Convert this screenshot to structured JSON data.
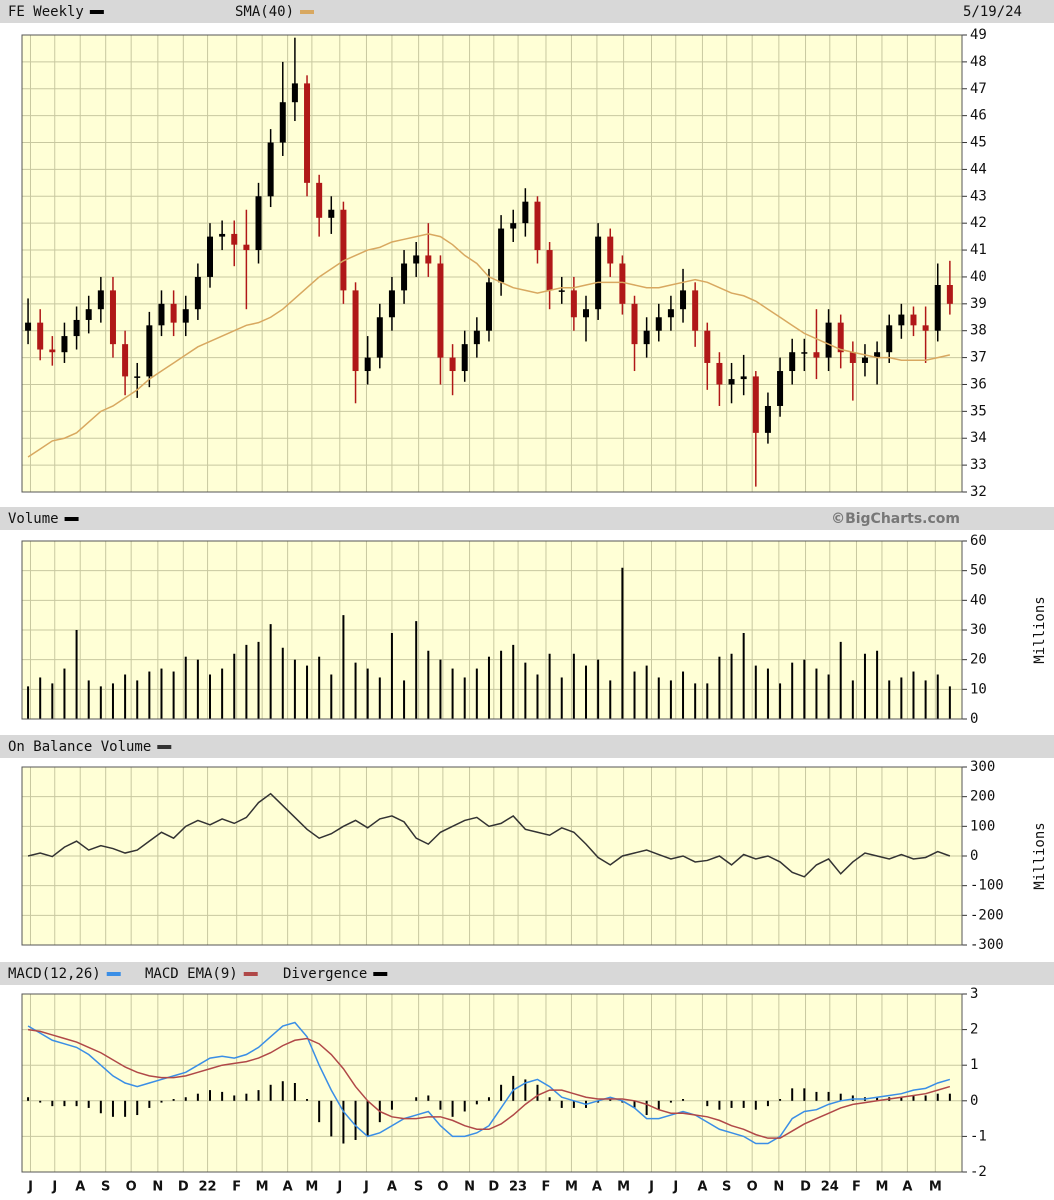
{
  "chart_data": [
    {
      "type": "candlestick",
      "date": "5/19/24",
      "up_color": "#000000",
      "down_color": "#b01818",
      "grid": true,
      "series": [
        {
          "name": "FE Weekly",
          "color": "#000000",
          "open": [
            38.0,
            38.3,
            37.3,
            37.2,
            37.8,
            38.4,
            38.8,
            39.5,
            37.5,
            36.3,
            36.3,
            38.2,
            39.0,
            38.3,
            38.8,
            40.0,
            41.5,
            41.6,
            41.2,
            41.0,
            43.0,
            45.0,
            46.5,
            47.2,
            43.5,
            42.2,
            42.5,
            39.5,
            36.5,
            37.0,
            38.5,
            39.5,
            40.5,
            40.8,
            40.5,
            37.0,
            36.5,
            37.5,
            38.0,
            39.8,
            41.8,
            42.0,
            42.8,
            41.0,
            39.5,
            39.5,
            38.5,
            38.8,
            41.5,
            40.5,
            39.0,
            37.5,
            38.0,
            38.5,
            38.8,
            39.5,
            38.0,
            36.8,
            36.0,
            36.2,
            36.3,
            34.2,
            35.2,
            36.5,
            37.2,
            37.2,
            37.0,
            38.3,
            37.2,
            36.8,
            37.0,
            37.2,
            38.2,
            38.6,
            38.2,
            38.0,
            39.7
          ],
          "high": [
            39.2,
            38.8,
            37.8,
            38.3,
            38.9,
            39.3,
            40.0,
            40.0,
            38.0,
            36.8,
            38.7,
            39.5,
            39.5,
            39.3,
            40.5,
            42.0,
            42.1,
            42.1,
            42.5,
            43.5,
            45.5,
            48.0,
            48.9,
            47.5,
            43.8,
            43.0,
            42.8,
            39.8,
            37.8,
            39.0,
            40.0,
            41.0,
            41.3,
            42.0,
            40.8,
            37.5,
            38.0,
            38.5,
            40.3,
            42.3,
            42.5,
            43.3,
            43.0,
            41.3,
            40.0,
            40.0,
            39.3,
            42.0,
            41.8,
            40.8,
            39.3,
            38.5,
            39.0,
            39.3,
            40.3,
            39.8,
            38.3,
            37.2,
            36.8,
            37.1,
            36.5,
            35.7,
            37.0,
            37.7,
            37.7,
            38.8,
            38.8,
            38.6,
            37.6,
            37.5,
            37.6,
            38.6,
            39.0,
            38.9,
            38.9,
            40.5,
            40.6
          ],
          "low": [
            37.5,
            36.9,
            36.7,
            36.8,
            37.3,
            37.9,
            38.3,
            37.0,
            35.6,
            35.5,
            35.9,
            37.8,
            37.8,
            37.8,
            38.4,
            39.6,
            41.0,
            40.4,
            38.8,
            40.5,
            42.6,
            44.5,
            45.8,
            43.0,
            41.5,
            41.6,
            39.0,
            35.3,
            36.0,
            36.6,
            38.0,
            39.0,
            40.0,
            40.0,
            36.0,
            35.6,
            36.1,
            37.0,
            37.6,
            39.3,
            41.3,
            41.5,
            40.5,
            38.8,
            39.0,
            38.0,
            37.6,
            38.4,
            40.0,
            38.6,
            36.5,
            37.0,
            37.6,
            38.0,
            38.3,
            37.4,
            35.8,
            35.2,
            35.3,
            35.6,
            32.2,
            33.8,
            34.8,
            36.0,
            36.5,
            36.2,
            36.5,
            36.6,
            35.4,
            36.3,
            36.0,
            36.8,
            37.7,
            37.8,
            36.8,
            37.6,
            38.6
          ],
          "close": [
            38.3,
            37.3,
            37.2,
            37.8,
            38.4,
            38.8,
            39.5,
            37.5,
            36.3,
            36.3,
            38.2,
            39.0,
            38.3,
            38.8,
            40.0,
            41.5,
            41.6,
            41.2,
            41.0,
            43.0,
            45.0,
            46.5,
            47.2,
            43.5,
            42.2,
            42.5,
            39.5,
            36.5,
            37.0,
            38.5,
            39.5,
            40.5,
            40.8,
            40.5,
            37.0,
            36.5,
            37.5,
            38.0,
            39.8,
            41.8,
            42.0,
            42.8,
            41.0,
            39.5,
            39.5,
            38.5,
            38.8,
            41.5,
            40.5,
            39.0,
            37.5,
            38.0,
            38.5,
            38.8,
            39.5,
            38.0,
            36.8,
            36.0,
            36.2,
            36.3,
            34.2,
            35.2,
            36.5,
            37.2,
            37.2,
            37.0,
            38.3,
            37.2,
            36.8,
            37.0,
            37.2,
            38.2,
            38.6,
            38.2,
            38.0,
            39.7,
            39.0
          ]
        }
      ],
      "overlay": {
        "name": "SMA(40)",
        "color": "#d8a860",
        "values": [
          33.3,
          33.6,
          33.9,
          34.0,
          34.2,
          34.6,
          35.0,
          35.2,
          35.5,
          35.8,
          36.2,
          36.5,
          36.8,
          37.1,
          37.4,
          37.6,
          37.8,
          38.0,
          38.2,
          38.3,
          38.5,
          38.8,
          39.2,
          39.6,
          40.0,
          40.3,
          40.6,
          40.8,
          41.0,
          41.1,
          41.3,
          41.4,
          41.5,
          41.6,
          41.5,
          41.2,
          40.8,
          40.5,
          40.0,
          39.8,
          39.6,
          39.5,
          39.4,
          39.5,
          39.6,
          39.6,
          39.7,
          39.8,
          39.8,
          39.8,
          39.7,
          39.6,
          39.6,
          39.7,
          39.8,
          39.9,
          39.8,
          39.6,
          39.4,
          39.3,
          39.1,
          38.8,
          38.5,
          38.2,
          37.9,
          37.7,
          37.5,
          37.3,
          37.2,
          37.1,
          37.0,
          37.0,
          36.9,
          36.9,
          36.9,
          37.0,
          37.1
        ]
      },
      "ylim": [
        32,
        49
      ],
      "yticks": [
        32,
        33,
        34,
        35,
        36,
        37,
        38,
        39,
        40,
        41,
        42,
        43,
        44,
        45,
        46,
        47,
        48,
        49
      ]
    },
    {
      "type": "bar",
      "credit": "©BigCharts.com",
      "y_label": "Millions",
      "grid": true,
      "series": [
        {
          "name": "Volume",
          "color": "#000000",
          "values": [
            11,
            14,
            12,
            17,
            30,
            13,
            11,
            12,
            15,
            13,
            16,
            17,
            16,
            21,
            20,
            15,
            17,
            22,
            25,
            26,
            32,
            24,
            20,
            18,
            21,
            15,
            35,
            19,
            17,
            14,
            29,
            13,
            33,
            23,
            20,
            17,
            14,
            17,
            21,
            23,
            25,
            19,
            15,
            22,
            14,
            22,
            18,
            20,
            13,
            51,
            16,
            18,
            14,
            13,
            16,
            12,
            12,
            21,
            22,
            29,
            18,
            17,
            12,
            19,
            20,
            17,
            15,
            26,
            13,
            22,
            23,
            13,
            14,
            16,
            13,
            15,
            11
          ]
        }
      ],
      "ylim": [
        0,
        60
      ],
      "yticks": [
        0,
        10,
        20,
        30,
        40,
        50,
        60
      ]
    },
    {
      "type": "line",
      "y_label": "Millions",
      "grid": true,
      "series": [
        {
          "name": "On Balance Volume",
          "color": "#333333",
          "values": [
            0,
            10,
            -2,
            30,
            50,
            20,
            35,
            25,
            10,
            20,
            50,
            80,
            60,
            100,
            120,
            105,
            125,
            110,
            130,
            180,
            210,
            170,
            130,
            90,
            60,
            75,
            100,
            120,
            95,
            125,
            135,
            115,
            60,
            40,
            80,
            100,
            120,
            130,
            100,
            110,
            135,
            90,
            80,
            70,
            95,
            80,
            40,
            -5,
            -30,
            0,
            10,
            20,
            5,
            -10,
            0,
            -20,
            -15,
            0,
            -30,
            5,
            -10,
            0,
            -20,
            -55,
            -70,
            -30,
            -10,
            -60,
            -20,
            10,
            0,
            -10,
            5,
            -10,
            -5,
            15,
            0
          ]
        }
      ],
      "ylim": [
        -300,
        300
      ],
      "yticks": [
        -300,
        -200,
        -100,
        0,
        100,
        200,
        300
      ]
    },
    {
      "type": "macd",
      "grid": true,
      "series": [
        {
          "name": "MACD(12,26)",
          "color": "#3a8ee6",
          "values": [
            2.1,
            1.9,
            1.7,
            1.6,
            1.5,
            1.3,
            1.0,
            0.7,
            0.5,
            0.4,
            0.5,
            0.6,
            0.7,
            0.8,
            1.0,
            1.2,
            1.25,
            1.2,
            1.3,
            1.5,
            1.8,
            2.1,
            2.2,
            1.8,
            1.0,
            0.3,
            -0.3,
            -0.7,
            -1.0,
            -0.9,
            -0.7,
            -0.5,
            -0.4,
            -0.3,
            -0.7,
            -1.0,
            -1.0,
            -0.9,
            -0.7,
            -0.2,
            0.3,
            0.5,
            0.6,
            0.4,
            0.1,
            0.0,
            -0.1,
            0.0,
            0.1,
            0.0,
            -0.2,
            -0.5,
            -0.5,
            -0.4,
            -0.3,
            -0.4,
            -0.6,
            -0.8,
            -0.9,
            -1.0,
            -1.2,
            -1.2,
            -1.0,
            -0.5,
            -0.3,
            -0.25,
            -0.1,
            0.0,
            0.05,
            0.05,
            0.1,
            0.15,
            0.2,
            0.3,
            0.35,
            0.5,
            0.6
          ]
        },
        {
          "name": "MACD EMA(9)",
          "color": "#b04848",
          "values": [
            2.0,
            1.95,
            1.85,
            1.75,
            1.65,
            1.5,
            1.35,
            1.15,
            0.95,
            0.8,
            0.7,
            0.65,
            0.65,
            0.7,
            0.8,
            0.9,
            1.0,
            1.05,
            1.1,
            1.2,
            1.35,
            1.55,
            1.7,
            1.75,
            1.6,
            1.3,
            0.9,
            0.4,
            0.0,
            -0.3,
            -0.45,
            -0.5,
            -0.5,
            -0.45,
            -0.45,
            -0.55,
            -0.7,
            -0.8,
            -0.8,
            -0.65,
            -0.4,
            -0.1,
            0.15,
            0.3,
            0.3,
            0.2,
            0.1,
            0.05,
            0.05,
            0.05,
            0.0,
            -0.1,
            -0.25,
            -0.35,
            -0.35,
            -0.4,
            -0.45,
            -0.55,
            -0.7,
            -0.8,
            -0.95,
            -1.05,
            -1.05,
            -0.85,
            -0.65,
            -0.5,
            -0.35,
            -0.2,
            -0.1,
            -0.05,
            0.0,
            0.05,
            0.1,
            0.15,
            0.2,
            0.3,
            0.4
          ]
        },
        {
          "name": "Divergence",
          "color": "#000000",
          "style": "histogram",
          "values": [
            0.1,
            -0.05,
            -0.15,
            -0.15,
            -0.15,
            -0.2,
            -0.35,
            -0.45,
            -0.45,
            -0.4,
            -0.2,
            -0.05,
            0.05,
            0.1,
            0.2,
            0.3,
            0.25,
            0.15,
            0.2,
            0.3,
            0.45,
            0.55,
            0.5,
            0.05,
            -0.6,
            -1.0,
            -1.2,
            -1.1,
            -1.0,
            -0.6,
            -0.25,
            0.0,
            0.1,
            0.15,
            -0.25,
            -0.45,
            -0.3,
            -0.1,
            0.1,
            0.45,
            0.7,
            0.6,
            0.45,
            0.1,
            -0.2,
            -0.2,
            -0.2,
            -0.05,
            0.05,
            -0.05,
            -0.2,
            -0.4,
            -0.25,
            -0.05,
            0.05,
            0.0,
            -0.15,
            -0.25,
            -0.2,
            -0.2,
            -0.25,
            -0.15,
            0.05,
            0.35,
            0.35,
            0.25,
            0.25,
            0.2,
            0.15,
            0.1,
            0.1,
            0.1,
            0.1,
            0.15,
            0.15,
            0.2,
            0.2
          ]
        }
      ],
      "ylim": [
        -2,
        3
      ],
      "yticks": [
        -2,
        -1,
        0,
        1,
        2,
        3
      ],
      "xlim": [
        -0.5,
        77.0
      ],
      "xticks": [
        {
          "value": 0.2,
          "label": "J"
        },
        {
          "value": 2.2,
          "label": "J"
        },
        {
          "value": 4.3,
          "label": "A"
        },
        {
          "value": 6.4,
          "label": "S"
        },
        {
          "value": 8.5,
          "label": "O"
        },
        {
          "value": 10.7,
          "label": "N"
        },
        {
          "value": 12.8,
          "label": "D"
        },
        {
          "value": 14.8,
          "label": "22"
        },
        {
          "value": 17.2,
          "label": "F"
        },
        {
          "value": 19.3,
          "label": "M"
        },
        {
          "value": 21.4,
          "label": "A"
        },
        {
          "value": 23.4,
          "label": "M"
        },
        {
          "value": 25.7,
          "label": "J"
        },
        {
          "value": 27.9,
          "label": "J"
        },
        {
          "value": 30.0,
          "label": "A"
        },
        {
          "value": 32.2,
          "label": "S"
        },
        {
          "value": 34.2,
          "label": "O"
        },
        {
          "value": 36.4,
          "label": "N"
        },
        {
          "value": 38.4,
          "label": "D"
        },
        {
          "value": 40.4,
          "label": "23"
        },
        {
          "value": 42.7,
          "label": "F"
        },
        {
          "value": 44.8,
          "label": "M"
        },
        {
          "value": 46.9,
          "label": "A"
        },
        {
          "value": 49.1,
          "label": "M"
        },
        {
          "value": 51.4,
          "label": "J"
        },
        {
          "value": 53.4,
          "label": "J"
        },
        {
          "value": 55.6,
          "label": "A"
        },
        {
          "value": 57.6,
          "label": "S"
        },
        {
          "value": 59.7,
          "label": "O"
        },
        {
          "value": 61.9,
          "label": "N"
        },
        {
          "value": 64.1,
          "label": "D"
        },
        {
          "value": 66.1,
          "label": "24"
        },
        {
          "value": 68.3,
          "label": "F"
        },
        {
          "value": 70.4,
          "label": "M"
        },
        {
          "value": 72.5,
          "label": "A"
        },
        {
          "value": 74.8,
          "label": "M"
        }
      ]
    }
  ]
}
